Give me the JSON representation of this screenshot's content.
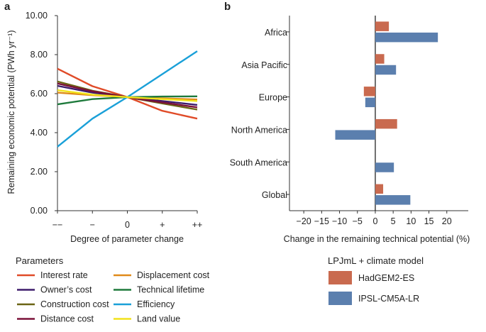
{
  "chart_data": [
    {
      "type": "line",
      "panel_label": "a",
      "ylabel": "Remaining economic potential (PWh yr⁻¹)",
      "xlabel": "Degree of parameter change",
      "ylim": [
        0,
        10
      ],
      "yticks": [
        "0.00",
        "2.00",
        "4.00",
        "6.00",
        "8.00",
        "10.00"
      ],
      "ytick_values": [
        0,
        2,
        4,
        6,
        8,
        10
      ],
      "x": [
        "−−",
        "−",
        "0",
        "+",
        "++"
      ],
      "legend_title": "Parameters",
      "series": [
        {
          "name": "Interest rate",
          "color": "#e04b28",
          "values": [
            7.28,
            6.38,
            5.82,
            5.12,
            4.72
          ]
        },
        {
          "name": "Owner’s cost",
          "color": "#3d1c6b",
          "values": [
            6.4,
            6.05,
            5.82,
            5.62,
            5.42
          ]
        },
        {
          "name": "Construction cost",
          "color": "#6b6414",
          "values": [
            6.62,
            6.15,
            5.82,
            5.5,
            5.18
          ]
        },
        {
          "name": "Distance cost",
          "color": "#7a1038",
          "values": [
            6.52,
            6.12,
            5.82,
            5.55,
            5.3
          ]
        },
        {
          "name": "Displacement cost",
          "color": "#e08a1a",
          "values": [
            6.05,
            5.92,
            5.82,
            5.76,
            5.7
          ]
        },
        {
          "name": "Technical lifetime",
          "color": "#1e7a3c",
          "values": [
            5.45,
            5.72,
            5.82,
            5.85,
            5.86
          ]
        },
        {
          "name": "Efficiency",
          "color": "#1aa0d8",
          "values": [
            3.28,
            4.72,
            5.82,
            7.0,
            8.18
          ]
        },
        {
          "name": "Land value",
          "color": "#f2e21a",
          "values": [
            6.18,
            5.95,
            5.82,
            5.72,
            5.62
          ]
        }
      ]
    },
    {
      "type": "bar",
      "orientation": "horizontal",
      "panel_label": "b",
      "xlabel": "Change in the remaining technical potential (%)",
      "xlim": [
        -24,
        26
      ],
      "xtick_values": [
        -20,
        -15,
        -10,
        -5,
        0,
        5,
        10,
        15,
        20
      ],
      "xticks": [
        "−20",
        "−15",
        "−10",
        "−5",
        "0",
        "5",
        "10",
        "15",
        "20"
      ],
      "categories": [
        "Africa",
        "Asia Pacific",
        "Europe",
        "North America",
        "South America",
        "Global"
      ],
      "legend_title": "LPJmL + climate model",
      "series": [
        {
          "name": "HadGEM2-ES",
          "color": "#c96a4f",
          "values": [
            3.8,
            2.5,
            -3.2,
            6.1,
            0.0,
            2.2
          ]
        },
        {
          "name": "IPSL-CM5A-LR",
          "color": "#5b7fae",
          "values": [
            17.5,
            5.8,
            -2.8,
            -11.2,
            5.2,
            9.8
          ]
        }
      ]
    }
  ]
}
